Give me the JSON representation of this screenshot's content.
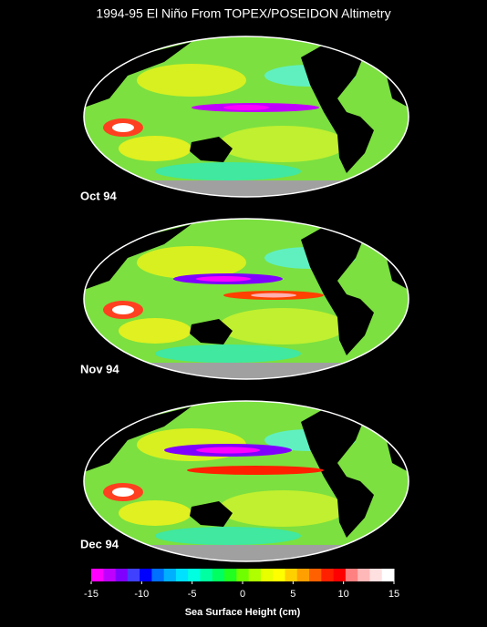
{
  "title": "1994-95 El Niño From TOPEX/POSEIDON Altimetry",
  "panels": [
    {
      "label": "Oct 94"
    },
    {
      "label": "Nov 94"
    },
    {
      "label": "Dec 94"
    }
  ],
  "colorbar": {
    "label": "Sea Surface Height (cm)",
    "lim": [
      -15,
      15
    ],
    "ticks": [
      -15,
      -10,
      -5,
      0,
      5,
      10,
      15
    ],
    "colors": [
      "#ff00ff",
      "#c000ff",
      "#8000ff",
      "#4040ff",
      "#0000ff",
      "#0070ff",
      "#00b0ff",
      "#00e0ff",
      "#00ffe0",
      "#00ffa0",
      "#00ff60",
      "#20ff20",
      "#70ff00",
      "#b0ff00",
      "#e8ff00",
      "#ffff00",
      "#ffd000",
      "#ffa000",
      "#ff6000",
      "#ff2000",
      "#ff0000",
      "#ff8080",
      "#ffb8b8",
      "#ffe0e0",
      "#ffffff"
    ]
  }
}
